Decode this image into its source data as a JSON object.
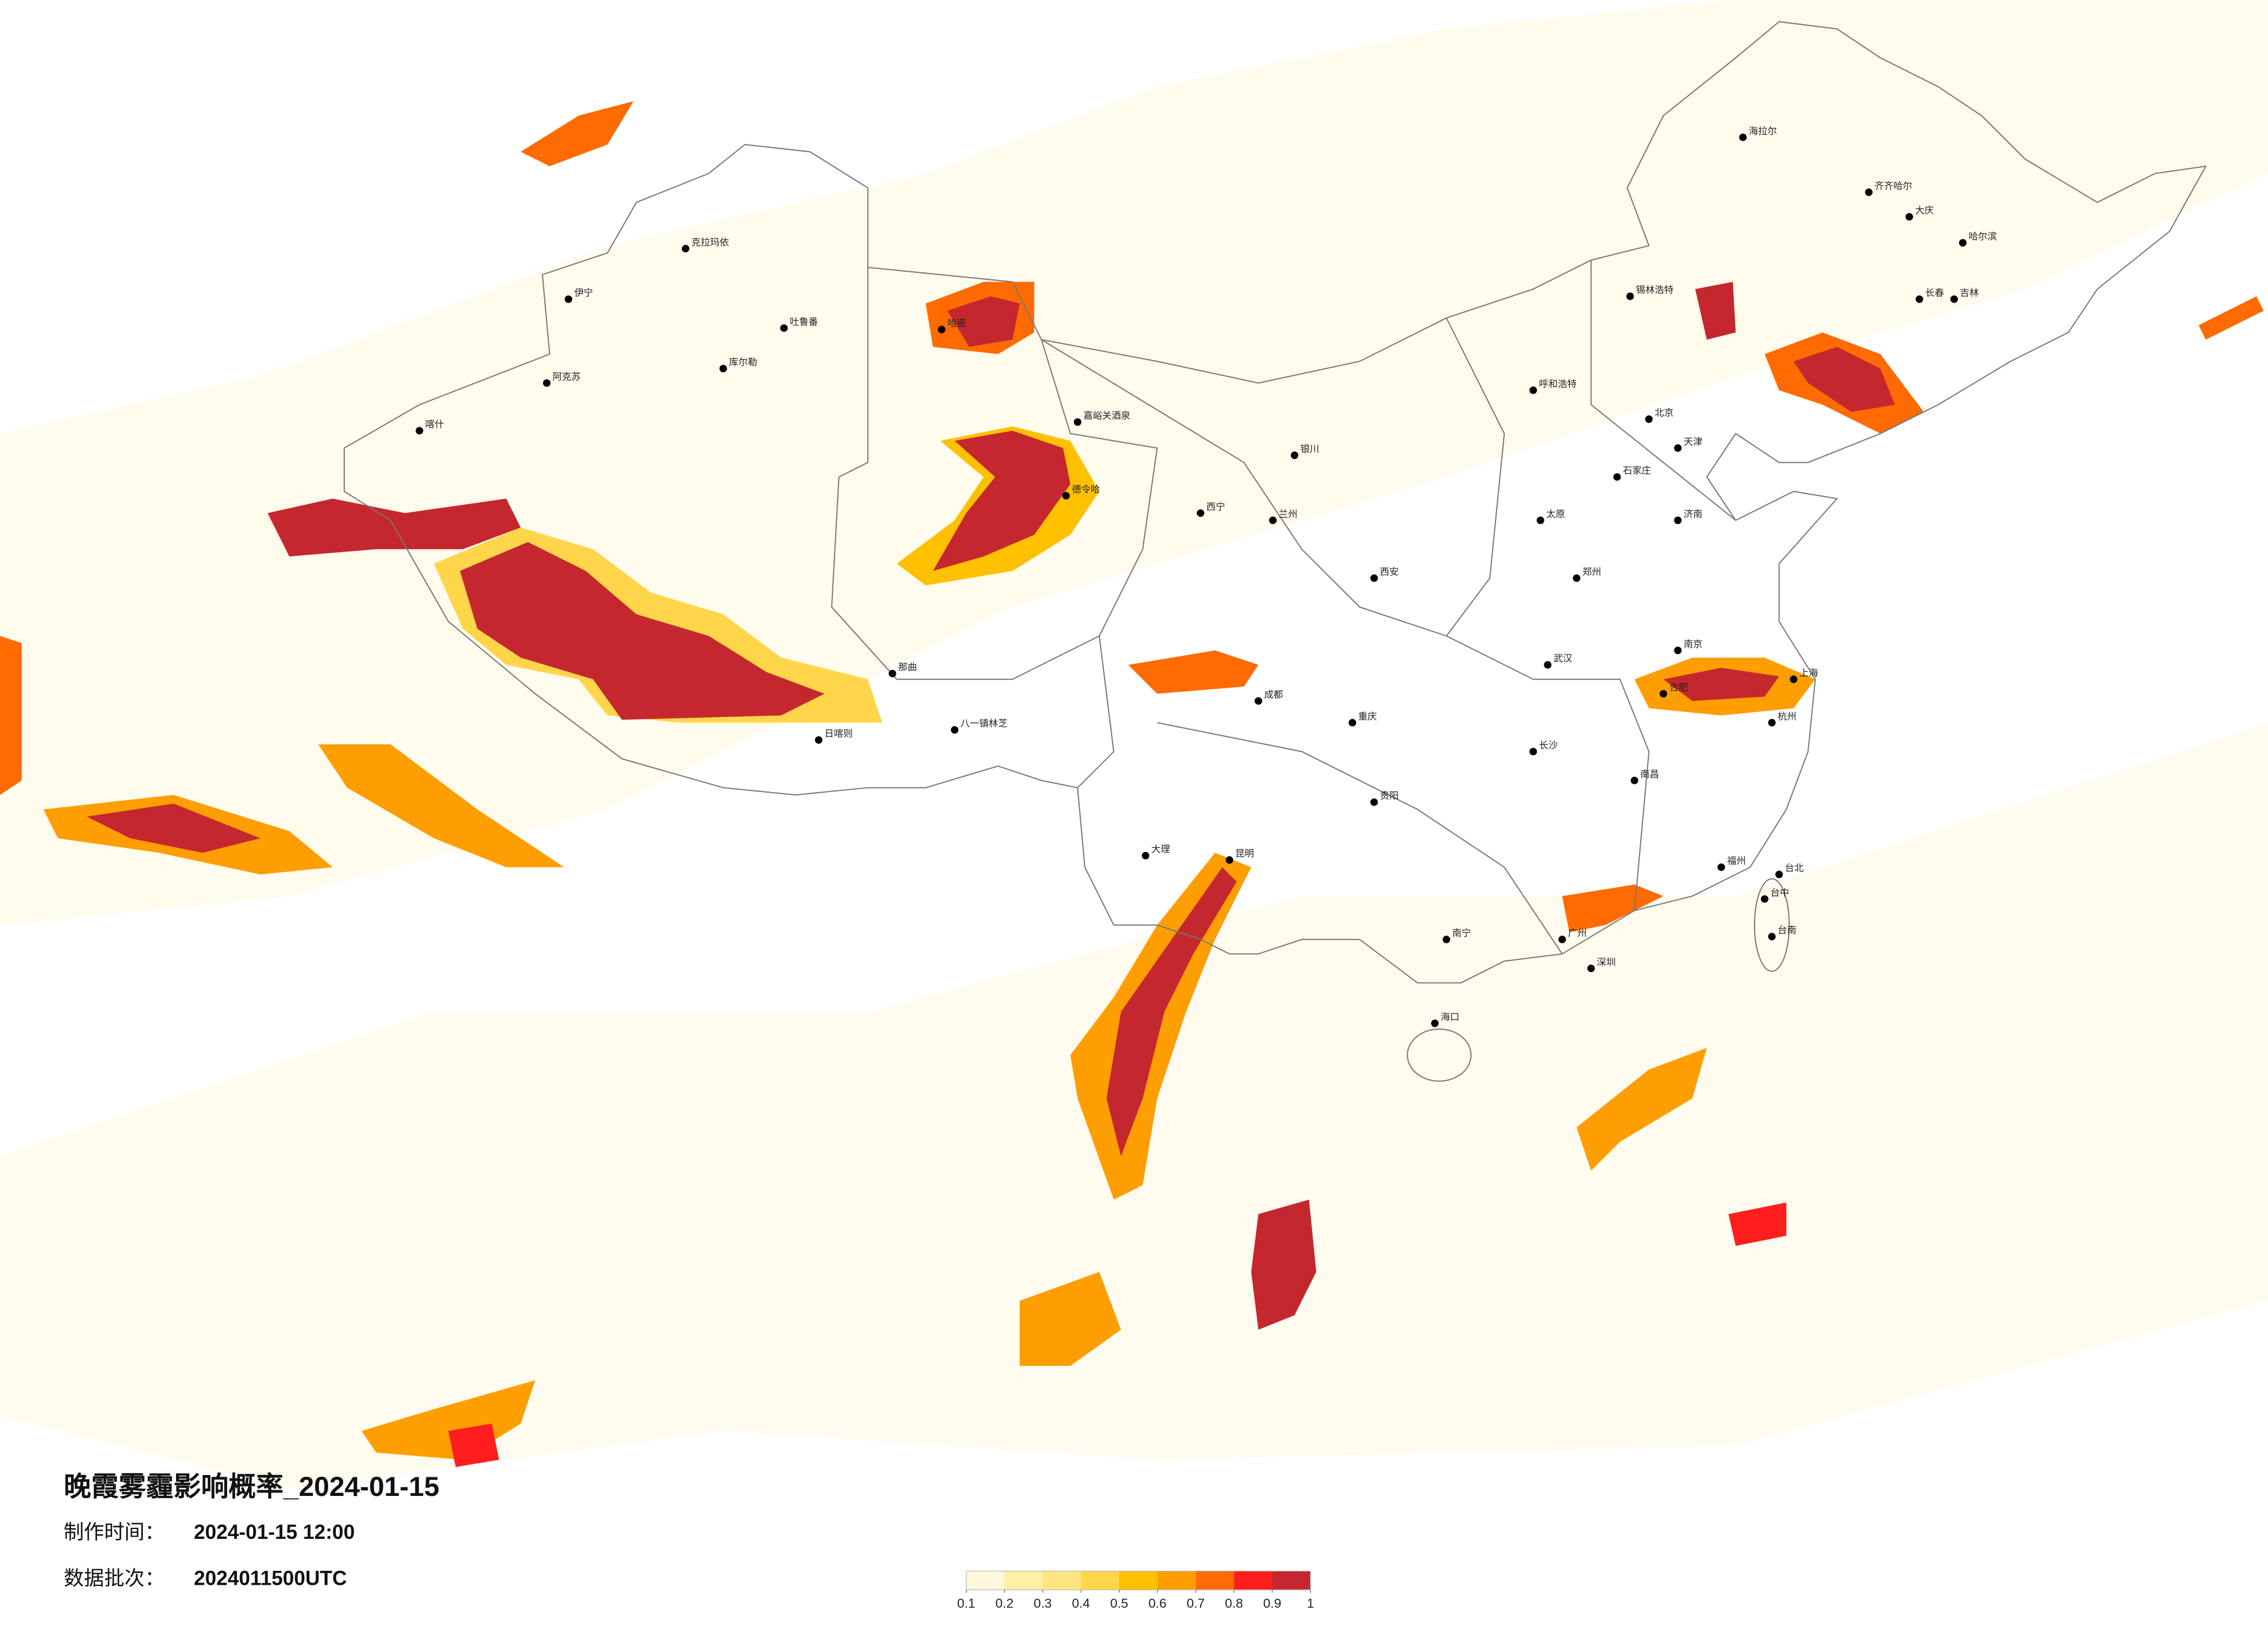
{
  "header": {
    "title": "晚霞雾霾影响概率_2024-01-15",
    "made_label": "制作时间：",
    "made_value": "2024-01-15 12:00",
    "batch_label": "数据批次：",
    "batch_value": "2024011500UTC"
  },
  "legend": {
    "ticks": [
      0.1,
      0.2,
      0.3,
      0.4,
      0.5,
      0.6,
      0.7,
      0.8,
      0.9,
      1
    ],
    "colors": [
      "#fff8dc",
      "#fff0a6",
      "#ffe680",
      "#ffd54a",
      "#ffc000",
      "#ff9e00",
      "#ff6b00",
      "#ff1e1e",
      "#c4282e"
    ]
  },
  "cities": [
    "伊宁",
    "克拉玛依",
    "阿克苏",
    "库尔勒",
    "吐鲁番",
    "哈密",
    "喀什",
    "嘉峪关酒泉",
    "德令哈",
    "那曲",
    "日喀则",
    "八一镇林芝",
    "海拉尔",
    "齐齐哈尔",
    "大庆",
    "哈尔滨",
    "长春",
    "吉林",
    "锡林浩特",
    "呼和浩特",
    "北京",
    "天津",
    "石家庄",
    "太原",
    "济南",
    "郑州",
    "西安",
    "兰州",
    "西宁",
    "银川",
    "成都",
    "重庆",
    "武汉",
    "长沙",
    "南京",
    "上海",
    "杭州",
    "合肥",
    "南昌",
    "福州",
    "广州",
    "深圳",
    "南宁",
    "海口",
    "贵阳",
    "昆明",
    "台北",
    "台中",
    "台南",
    "大理"
  ]
}
